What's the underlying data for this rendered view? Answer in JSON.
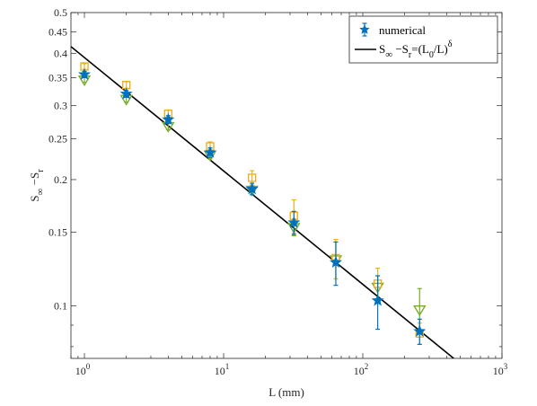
{
  "chart_data": {
    "type": "scatter",
    "xlabel": "L (mm)",
    "ylabel": {
      "base": "S",
      "sub1": "∞",
      "mid": " −S",
      "sub2": "r"
    },
    "xscale": "log",
    "yscale": "log",
    "xlim": [
      0.8,
      1000
    ],
    "ylim": [
      0.075,
      0.5
    ],
    "x_ticks": [
      1,
      10,
      100,
      1000
    ],
    "x_tick_labels": [
      {
        "base": "10",
        "exp": "0"
      },
      {
        "base": "10",
        "exp": "1"
      },
      {
        "base": "10",
        "exp": "2"
      },
      {
        "base": "10",
        "exp": "3"
      }
    ],
    "y_ticks": [
      0.1,
      0.15,
      0.2,
      0.25,
      0.3,
      0.35,
      0.4,
      0.45,
      0.5
    ],
    "y_tick_labels": [
      "0.1",
      "0.15",
      "0.2",
      "0.25",
      "0.3",
      "0.35",
      "0.4",
      "0.45",
      "0.5"
    ],
    "grid": false,
    "legend_position": "top-right",
    "legend": [
      {
        "label": "numerical",
        "marker": "star-errorbar",
        "color": "#0072BD"
      },
      {
        "label": {
          "p1": "S",
          "s1": "∞",
          "p2": " −S",
          "s2": "r",
          "p3": "=(L",
          "s3": "0",
          "p4": "/L)",
          "sup": "δ"
        },
        "marker": "line",
        "color": "#000000"
      }
    ],
    "fit_line": {
      "x": [
        0.8,
        450
      ],
      "y": [
        0.415,
        0.075
      ],
      "color": "#000000"
    },
    "series": [
      {
        "marker": "star",
        "color": "#0072BD",
        "x": [
          1,
          2,
          4,
          8,
          16,
          32,
          64,
          128,
          256
        ],
        "y": [
          0.356,
          0.32,
          0.278,
          0.232,
          0.19,
          0.158,
          0.127,
          0.103,
          0.087
        ],
        "err": [
          0.006,
          0.006,
          0.006,
          0.006,
          0.006,
          0.01,
          0.015,
          0.015,
          0.006
        ]
      },
      {
        "marker": "square",
        "color": "#EDB120",
        "x": [
          1,
          2,
          4,
          8,
          16,
          32,
          64,
          128,
          256
        ],
        "y": [
          0.372,
          0.336,
          0.287,
          0.24,
          0.202,
          0.164,
          0.13,
          0.113,
          0.086
        ],
        "err": [
          0.006,
          0.006,
          0.006,
          0.006,
          0.008,
          0.015,
          0.014,
          0.01,
          0.005
        ]
      },
      {
        "marker": "triangle-down",
        "color": "#77AC30",
        "x": [
          1,
          2,
          4,
          8,
          16,
          32,
          64,
          128,
          256
        ],
        "y": [
          0.346,
          0.311,
          0.268,
          0.229,
          0.189,
          0.154,
          0.129,
          0.111,
          0.098
        ],
        "err": [
          0.005,
          0.005,
          0.005,
          0.005,
          0.005,
          0.007,
          0.013,
          0.007,
          0.012
        ]
      }
    ]
  }
}
